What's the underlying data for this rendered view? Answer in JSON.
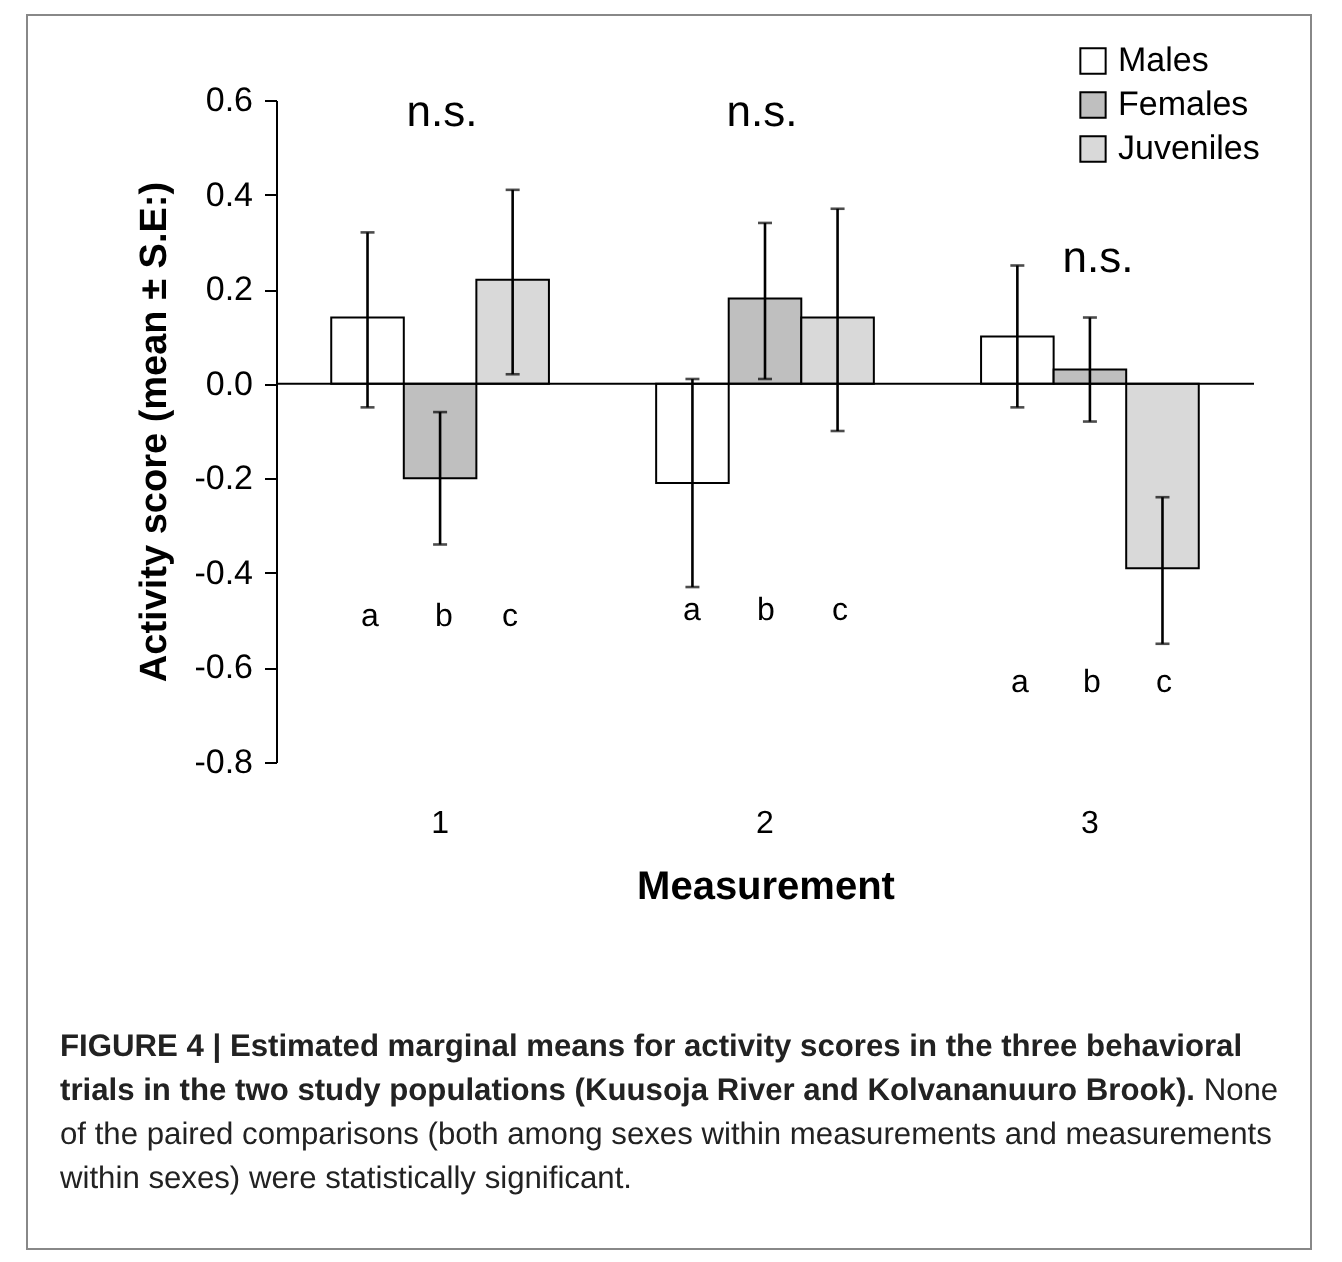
{
  "chart_data": {
    "type": "bar",
    "xlabel": "Measurement",
    "ylabel": "Activity score (mean ± S.E:)",
    "categories": [
      "1",
      "2",
      "3"
    ],
    "series": [
      {
        "name": "Males",
        "color": "#ffffff",
        "values": [
          0.14,
          -0.21,
          0.1
        ],
        "errors": [
          [
            -0.05,
            0.32
          ],
          [
            -0.43,
            0.01
          ],
          [
            -0.05,
            0.25
          ]
        ]
      },
      {
        "name": "Females",
        "color": "#bfbfbf",
        "values": [
          -0.2,
          0.18,
          0.03
        ],
        "errors": [
          [
            -0.34,
            -0.06
          ],
          [
            0.01,
            0.34
          ],
          [
            -0.08,
            0.14
          ]
        ]
      },
      {
        "name": "Juveniles",
        "color": "#d9d9d9",
        "values": [
          0.22,
          0.14,
          -0.39
        ],
        "errors": [
          [
            0.02,
            0.41
          ],
          [
            -0.1,
            0.37
          ],
          [
            -0.55,
            -0.24
          ]
        ]
      }
    ],
    "ylim": [
      -0.8,
      0.6
    ],
    "yticks": [
      {
        "value": -0.8,
        "label": "-0.8"
      },
      {
        "value": -0.6,
        "label": "-0.6"
      },
      {
        "value": -0.4,
        "label": "-0.4"
      },
      {
        "value": -0.2,
        "label": "-0.2"
      },
      {
        "value": 0,
        "label": "0.0"
      },
      {
        "value": 0.2,
        "label": "0.2"
      },
      {
        "value": 0.4,
        "label": "0.4"
      },
      {
        "value": 0.6,
        "label": "0.6"
      }
    ],
    "legend": "top right",
    "annotations": [
      "n.s.",
      "n.s.",
      "n.s.",
      "a",
      "b",
      "c",
      "a",
      "b",
      "c",
      "a",
      "b",
      "c",
      "FIGURE 4 | Estimated marginal means for activity scores in the three behavioral trials in the two study populations (Kuusoja River and Kolvananuuro Brook).",
      "None of the paired comparisons (both among sexes within measurements and measurements within sexes) were statistically significant."
    ]
  }
}
